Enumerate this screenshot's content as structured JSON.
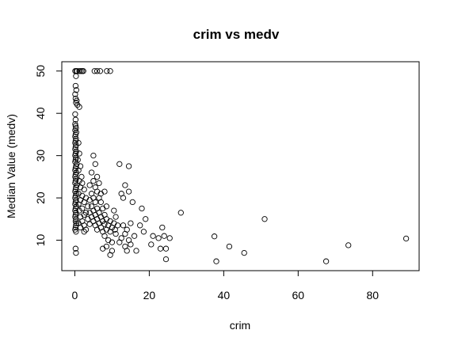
{
  "chart_data": {
    "type": "scatter",
    "title": "crim vs medv",
    "xlabel": "crim",
    "ylabel": "Median Value (medv)",
    "xlim": [
      -3.5,
      92.5
    ],
    "ylim": [
      2.8,
      52.2
    ],
    "x_ticks": [
      0,
      20,
      40,
      60,
      80
    ],
    "y_ticks": [
      10,
      20,
      30,
      40,
      50
    ],
    "grid": false,
    "legend": "none",
    "marker": "open-circle",
    "colors": {
      "marker": "#000000",
      "axis": "#000000",
      "background": "#ffffff"
    },
    "points": [
      [
        0.1,
        50
      ],
      [
        0.4,
        50
      ],
      [
        0.6,
        50
      ],
      [
        1.2,
        50
      ],
      [
        1.6,
        50
      ],
      [
        2.0,
        50
      ],
      [
        2.3,
        50
      ],
      [
        5.3,
        50
      ],
      [
        6.0,
        50
      ],
      [
        6.8,
        50
      ],
      [
        8.6,
        50
      ],
      [
        9.5,
        50
      ],
      [
        0.3,
        48.8
      ],
      [
        0.2,
        46.5
      ],
      [
        0.4,
        45.5
      ],
      [
        0.1,
        44.5
      ],
      [
        0.2,
        43.5
      ],
      [
        0.5,
        43
      ],
      [
        0.3,
        42.5
      ],
      [
        0.7,
        42
      ],
      [
        1.2,
        41.5
      ],
      [
        0.1,
        39.8
      ],
      [
        0.2,
        38.5
      ],
      [
        0.1,
        37.5
      ],
      [
        0.2,
        37
      ],
      [
        0.3,
        36.5
      ],
      [
        0.1,
        36
      ],
      [
        0.4,
        35.5
      ],
      [
        0.2,
        35
      ],
      [
        0.1,
        34.5
      ],
      [
        0.3,
        34
      ],
      [
        0.2,
        33.5
      ],
      [
        0.1,
        33
      ],
      [
        0.3,
        32.5
      ],
      [
        0.2,
        32
      ],
      [
        0.1,
        31.5
      ],
      [
        0.4,
        31
      ],
      [
        0.2,
        30.5
      ],
      [
        0.1,
        30
      ],
      [
        0.3,
        29.5
      ],
      [
        0.2,
        29
      ],
      [
        0.1,
        28.5
      ],
      [
        0.5,
        28
      ],
      [
        0.3,
        27.5
      ],
      [
        0.2,
        27
      ],
      [
        0.1,
        26.5
      ],
      [
        0.4,
        26
      ],
      [
        0.2,
        25.5
      ],
      [
        0.1,
        25
      ],
      [
        0.3,
        24.5
      ],
      [
        0.2,
        24
      ],
      [
        0.1,
        23.5
      ],
      [
        0.5,
        23
      ],
      [
        0.3,
        22.5
      ],
      [
        0.2,
        22
      ],
      [
        0.1,
        21.5
      ],
      [
        0.4,
        21
      ],
      [
        0.2,
        20.5
      ],
      [
        0.1,
        20
      ],
      [
        0.3,
        19.5
      ],
      [
        0.2,
        19
      ],
      [
        0.1,
        18.5
      ],
      [
        0.4,
        18
      ],
      [
        0.2,
        17.5
      ],
      [
        0.1,
        17
      ],
      [
        0.3,
        16.5
      ],
      [
        0.2,
        16
      ],
      [
        0.1,
        15.5
      ],
      [
        0.3,
        15
      ],
      [
        0.2,
        14.5
      ],
      [
        0.4,
        14
      ],
      [
        0.3,
        13.5
      ],
      [
        0.2,
        13
      ],
      [
        0.1,
        12.5
      ],
      [
        0.3,
        12
      ],
      [
        0.2,
        8
      ],
      [
        0.3,
        7
      ],
      [
        1.0,
        33
      ],
      [
        1.2,
        30.5
      ],
      [
        0.8,
        29
      ],
      [
        1.5,
        27.5
      ],
      [
        1.0,
        26.5
      ],
      [
        1.8,
        25
      ],
      [
        1.2,
        24
      ],
      [
        2.0,
        23.5
      ],
      [
        1.5,
        22.5
      ],
      [
        2.5,
        22
      ],
      [
        1.0,
        21
      ],
      [
        2.0,
        20.5
      ],
      [
        3.0,
        20
      ],
      [
        1.5,
        19.5
      ],
      [
        2.5,
        19
      ],
      [
        1.0,
        18.5
      ],
      [
        3.5,
        18
      ],
      [
        2.0,
        17.5
      ],
      [
        1.2,
        17
      ],
      [
        3.0,
        16.5
      ],
      [
        2.5,
        16
      ],
      [
        1.5,
        15.5
      ],
      [
        3.5,
        15
      ],
      [
        2.0,
        14.5
      ],
      [
        1.0,
        14
      ],
      [
        4.0,
        13.8
      ],
      [
        2.5,
        13.5
      ],
      [
        1.5,
        13
      ],
      [
        3.0,
        12.5
      ],
      [
        2.5,
        12
      ],
      [
        5.0,
        30
      ],
      [
        5.5,
        28
      ],
      [
        4.5,
        26
      ],
      [
        6.0,
        25
      ],
      [
        5.0,
        24
      ],
      [
        6.5,
        23.5
      ],
      [
        4.0,
        23
      ],
      [
        5.5,
        22.5
      ],
      [
        6.0,
        21.5
      ],
      [
        4.5,
        21
      ],
      [
        7.0,
        21
      ],
      [
        8.0,
        21.5
      ],
      [
        5.0,
        20
      ],
      [
        6.5,
        20
      ],
      [
        4.0,
        19.5
      ],
      [
        5.5,
        19
      ],
      [
        7.0,
        19
      ],
      [
        4.5,
        18
      ],
      [
        6.0,
        17.5
      ],
      [
        5.0,
        17
      ],
      [
        7.5,
        17.5
      ],
      [
        8.5,
        18
      ],
      [
        4.0,
        16.5
      ],
      [
        6.5,
        16.5
      ],
      [
        5.5,
        16
      ],
      [
        8.0,
        16
      ],
      [
        4.5,
        15.5
      ],
      [
        7.0,
        15.5
      ],
      [
        6.0,
        15
      ],
      [
        8.5,
        15
      ],
      [
        5.0,
        14.5
      ],
      [
        7.5,
        14.5
      ],
      [
        9.5,
        14.5
      ],
      [
        6.5,
        14
      ],
      [
        8.0,
        13.8
      ],
      [
        5.5,
        13.5
      ],
      [
        9.0,
        13.5
      ],
      [
        7.0,
        13
      ],
      [
        10.0,
        13
      ],
      [
        6.0,
        12.5
      ],
      [
        8.5,
        12.5
      ],
      [
        9.5,
        12
      ],
      [
        7.5,
        12
      ],
      [
        8.0,
        11
      ],
      [
        9.0,
        10
      ],
      [
        10.0,
        9.5
      ],
      [
        8.5,
        8.5
      ],
      [
        7.5,
        8
      ],
      [
        10.5,
        17
      ],
      [
        11.0,
        15.5
      ],
      [
        10.5,
        14
      ],
      [
        11.5,
        13.5
      ],
      [
        10.8,
        12.5
      ],
      [
        11.0,
        11.5
      ],
      [
        12.5,
        10.5
      ],
      [
        12.0,
        9.5
      ],
      [
        10.0,
        7.5
      ],
      [
        9.5,
        6.5
      ],
      [
        12.0,
        28
      ],
      [
        14.5,
        27.5
      ],
      [
        13.5,
        23
      ],
      [
        12.5,
        21
      ],
      [
        14.5,
        21.5
      ],
      [
        13.0,
        20
      ],
      [
        15.5,
        19
      ],
      [
        13.0,
        13.5
      ],
      [
        15.0,
        14
      ],
      [
        14.0,
        12.5
      ],
      [
        13.5,
        11.5
      ],
      [
        16.0,
        11
      ],
      [
        14.5,
        10
      ],
      [
        15.0,
        9
      ],
      [
        13.5,
        8.5
      ],
      [
        14.0,
        7.5
      ],
      [
        16.5,
        7.5
      ],
      [
        18.0,
        17.5
      ],
      [
        19.0,
        15
      ],
      [
        17.5,
        13.5
      ],
      [
        18.5,
        12
      ],
      [
        21.0,
        11
      ],
      [
        22.5,
        10.5
      ],
      [
        20.5,
        9
      ],
      [
        23.5,
        13
      ],
      [
        24.0,
        11
      ],
      [
        25.5,
        10.5
      ],
      [
        23.0,
        8
      ],
      [
        24.5,
        8
      ],
      [
        24.5,
        5.5
      ],
      [
        28.5,
        16.5
      ],
      [
        37.5,
        10.9
      ],
      [
        38.0,
        5
      ],
      [
        41.5,
        8.5
      ],
      [
        45.5,
        7
      ],
      [
        51.0,
        15
      ],
      [
        67.5,
        5
      ],
      [
        73.5,
        8.8
      ],
      [
        89.0,
        10.4
      ]
    ]
  }
}
